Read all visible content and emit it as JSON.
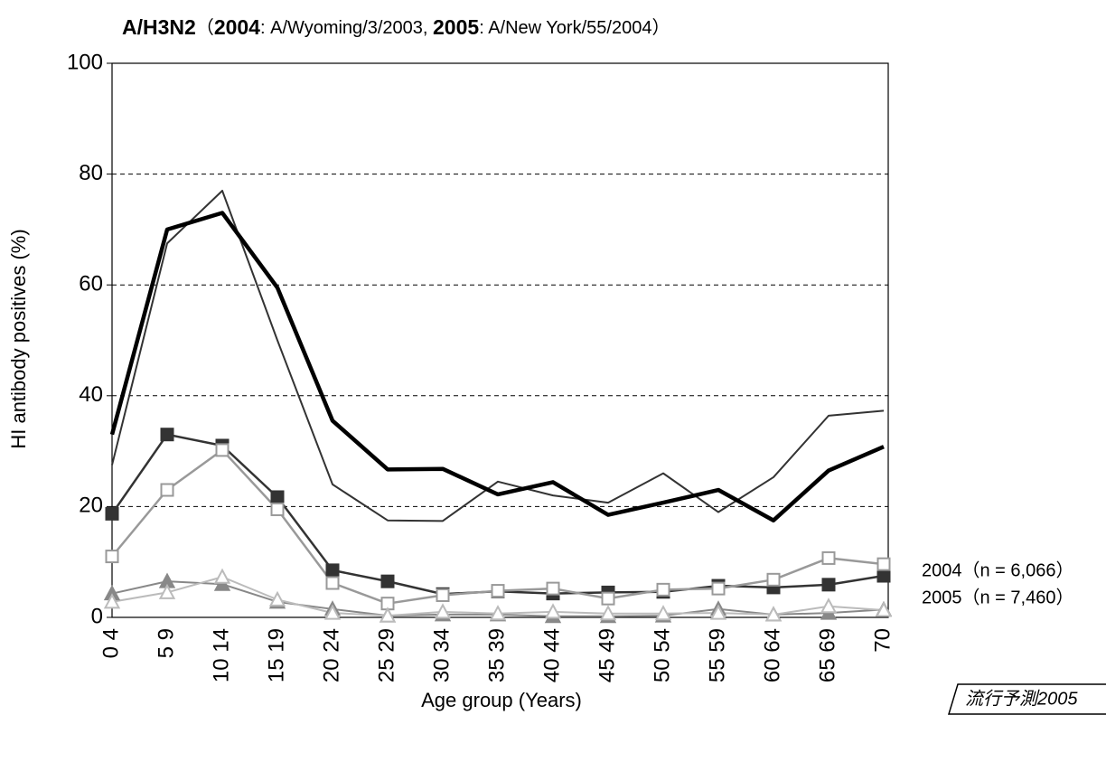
{
  "chart_data": {
    "type": "line",
    "title_parts": [
      {
        "text": "A/H3N2",
        "bold": true
      },
      {
        "text": "（",
        "bold": false
      },
      {
        "text": "2004",
        "bold": true
      },
      {
        "text": ": A/Wyoming/3/2003,  ",
        "bold": false
      },
      {
        "text": "2005",
        "bold": true
      },
      {
        "text": ": A/New York/55/2004",
        "bold": false
      },
      {
        "text": "）",
        "bold": false
      }
    ],
    "y_label": "HI antibody positives (%)",
    "x_label": "Age group (Years)",
    "categories": [
      "0 4",
      "5 9",
      "10 14",
      "15 19",
      "20 24",
      "25 29",
      "30 34",
      "35 39",
      "40 44",
      "45 49",
      "50 54",
      "55 59",
      "60 64",
      "65 69",
      "70"
    ],
    "ylim": [
      0,
      100
    ],
    "yticks": [
      0,
      20,
      40,
      60,
      80,
      100
    ],
    "grid": true,
    "series": [
      {
        "color": "#333333",
        "width": 2,
        "marker": "none",
        "values": [
          27.5,
          67.5,
          77,
          50,
          24,
          17.5,
          17.4,
          24.5,
          22,
          20.7,
          26,
          19,
          25.3,
          36.4,
          37.3
        ]
      },
      {
        "color": "#000000",
        "width": 4.5,
        "marker": "none",
        "values": [
          33,
          70,
          73,
          59.5,
          35.5,
          26.7,
          26.8,
          22.2,
          24.4,
          18.5,
          20.7,
          23,
          17.5,
          26.5,
          30.8
        ]
      },
      {
        "color": "#333333",
        "width": 2.5,
        "marker": "square-filled",
        "values": [
          18.7,
          33,
          31,
          21.7,
          8.5,
          6.5,
          4.2,
          4.7,
          4.3,
          4.5,
          4.6,
          5.7,
          5.4,
          5.9,
          7.5
        ]
      },
      {
        "color": "#999999",
        "width": 2.5,
        "marker": "square-open",
        "values": [
          11,
          23,
          30.2,
          19.5,
          6.2,
          2.5,
          4,
          4.8,
          5.2,
          3.4,
          5,
          5.2,
          6.8,
          10.7,
          9.6
        ]
      },
      {
        "color": "#888888",
        "width": 2,
        "marker": "triangle-filled",
        "values": [
          4.3,
          6.5,
          6,
          2.8,
          1.5,
          0.3,
          0.5,
          0.5,
          0.2,
          0.2,
          0.3,
          1.5,
          0.5,
          0.8,
          1.4
        ]
      },
      {
        "color": "#bbbbbb",
        "width": 2,
        "marker": "triangle-open",
        "values": [
          2.8,
          4.5,
          7.3,
          3.2,
          0.8,
          0.3,
          1,
          0.7,
          1,
          0.7,
          0.7,
          0.8,
          0.5,
          2,
          1.3
        ]
      }
    ],
    "annotations": [
      "2004（n = 6,066）",
      "2005（n = 7,460）"
    ],
    "stamp": "流行予測2005"
  }
}
